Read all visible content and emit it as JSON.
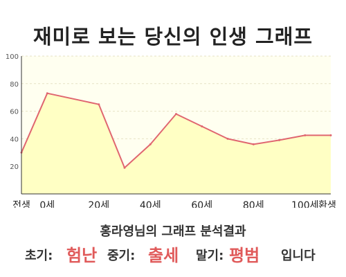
{
  "header": {
    "title": "재미로 보는 당신의 인생 그래프"
  },
  "colors": {
    "line": "#e06670",
    "area_fill": "#ffffc4",
    "plot_bg": "#fffff0",
    "grid": "#e6e2c4",
    "axis": "#333333",
    "highlight": "#e05a5a"
  },
  "chart_data": {
    "type": "area",
    "x": [
      -10,
      0,
      20,
      30,
      40,
      50,
      60,
      70,
      80,
      90,
      100,
      110
    ],
    "values": [
      30,
      73,
      65,
      19,
      36,
      58,
      49,
      40,
      36,
      39,
      42.5,
      42.5
    ],
    "ylim": [
      0,
      100
    ],
    "xlim": [
      -10,
      110
    ],
    "y_ticks": [
      20,
      40,
      60,
      80,
      100
    ],
    "x_ticks": [
      {
        "value": -10,
        "label": "전생"
      },
      {
        "value": 0,
        "label": "0세"
      },
      {
        "value": 20,
        "label": "20세"
      },
      {
        "value": 40,
        "label": "40세"
      },
      {
        "value": 60,
        "label": "60세"
      },
      {
        "value": 80,
        "label": "80세"
      },
      {
        "value": 100,
        "label": "100세"
      },
      {
        "value": 110,
        "label": "환생"
      }
    ],
    "grid": true
  },
  "summary": {
    "heading": "홍라영님의 그래프 분석결과",
    "early_label": "초기:",
    "early_value": "험난",
    "mid_label": "중기:",
    "mid_value": "출세",
    "late_label": "말기:",
    "late_value": "평범",
    "suffix": "입니다"
  }
}
